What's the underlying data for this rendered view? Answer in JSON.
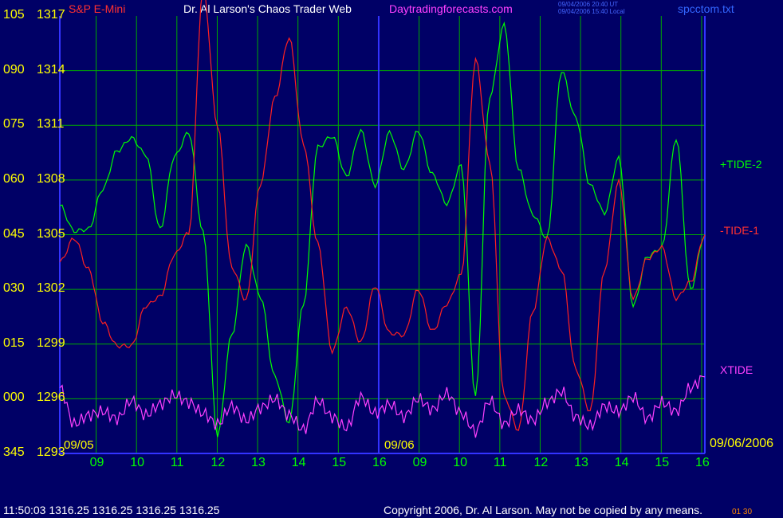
{
  "header": {
    "instrument": "S&P E-Mini",
    "author": "Dr. Al Larson's Chaos Trader Web",
    "site": "Daytradingforecasts.com",
    "stamp_ut": "09/04/2006 20:40 UT",
    "stamp_local": "09/04/2006 15:40 Local",
    "file": "spcctom.txt"
  },
  "footer": {
    "quote": "11:50:03  1316.25 1316.25 1316.25 1316.25",
    "copyright": "Copyright 2006, Dr. Al Larson. May not be copied by any means.",
    "corner_mark": "01 30"
  },
  "colors": {
    "background": "#000066",
    "grid": "#00aa00",
    "axis": "#3333ff",
    "tide2": "#00ff00",
    "tide1": "#ff2020",
    "xtide": "#ff40ff",
    "ylabels": "#ffff00",
    "xlabels": "#00ff00"
  },
  "chart_data": {
    "type": "line",
    "y_labels": [
      {
        "left": "105",
        "right": "1317"
      },
      {
        "left": "090",
        "right": "1314"
      },
      {
        "left": "075",
        "right": "1311"
      },
      {
        "left": "060",
        "right": "1308"
      },
      {
        "left": "045",
        "right": "1305"
      },
      {
        "left": "030",
        "right": "1302"
      },
      {
        "left": "015",
        "right": "1299"
      },
      {
        "left": "000",
        "right": "1296"
      },
      {
        "left": "345",
        "right": "1293"
      }
    ],
    "ylim": [
      1293,
      1317
    ],
    "x_tick_labels": [
      "09",
      "10",
      "11",
      "12",
      "13",
      "14",
      "15",
      "16",
      "09",
      "10",
      "11",
      "12",
      "13",
      "14",
      "15",
      "16"
    ],
    "date_labels": {
      "start": "09/05",
      "mid": "09/06",
      "end": "09/06/2006"
    },
    "grid": true,
    "series": [
      {
        "name": "+TIDE-2",
        "color": "#00ff00",
        "values": [
          1306.6,
          1305.2,
          1305.3,
          1307.5,
          1309.6,
          1310.3,
          1309.4,
          1305.3,
          1309.3,
          1310.6,
          1305.1,
          1294.0,
          1299.5,
          1304.4,
          1301.6,
          1297.2,
          1294.7,
          1301.2,
          1309.8,
          1310.4,
          1308.2,
          1310.7,
          1307.7,
          1310.6,
          1308.6,
          1310.7,
          1308.3,
          1306.7,
          1308.8,
          1296.1,
          1312.6,
          1316.5,
          1308.6,
          1306.1,
          1304.8,
          1314.0,
          1311.4,
          1307.7,
          1306.2,
          1309.2,
          1301.1,
          1303.8,
          1304.3,
          1310.3,
          1302.0,
          1305.0
        ],
        "labels": [
          "+TIDE-2"
        ]
      },
      {
        "name": "-TIDE-1",
        "color": "#ff2020",
        "values": [
          1303.5,
          1304.8,
          1303.1,
          1300.2,
          1298.9,
          1298.9,
          1301.1,
          1301.6,
          1303.9,
          1305.1,
          1318.5,
          1311.0,
          1303.2,
          1301.4,
          1307.8,
          1312.5,
          1315.8,
          1310.0,
          1304.5,
          1298.6,
          1301.0,
          1299.1,
          1302.2,
          1299.6,
          1299.5,
          1302.0,
          1299.7,
          1301.2,
          1302.8,
          1314.6,
          1309.0,
          1296.1,
          1294.3,
          1300.8,
          1304.8,
          1303.1,
          1297.6,
          1295.3,
          1303.1,
          1307.9,
          1301.5,
          1303.7,
          1304.3,
          1301.5,
          1302.4,
          1305.0
        ],
        "labels": [
          "-TIDE-1"
        ]
      },
      {
        "name": "XTIDE",
        "color": "#ff40ff",
        "values": [
          1296.6,
          1294.6,
          1295.1,
          1295.3,
          1294.9,
          1295.9,
          1295.1,
          1295.7,
          1296.2,
          1295.8,
          1295.2,
          1294.6,
          1295.6,
          1294.8,
          1295.5,
          1296.0,
          1295.1,
          1294.3,
          1295.9,
          1295.0,
          1294.4,
          1296.1,
          1295.2,
          1295.7,
          1295.0,
          1296.0,
          1295.4,
          1296.3,
          1295.2,
          1294.2,
          1295.9,
          1294.6,
          1295.4,
          1294.8,
          1295.8,
          1296.4,
          1295.0,
          1294.5,
          1295.6,
          1295.3,
          1296.1,
          1294.9,
          1295.8,
          1295.3,
          1296.6,
          1297.2
        ],
        "labels": [
          "XTIDE"
        ]
      }
    ]
  }
}
